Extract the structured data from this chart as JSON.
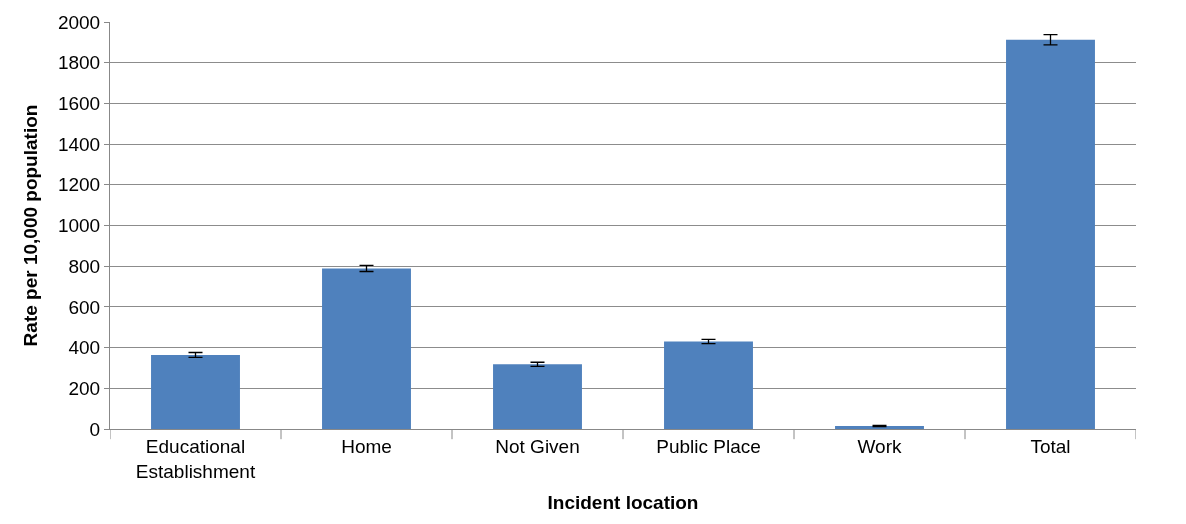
{
  "chart_data": {
    "type": "bar",
    "xlabel": "Incident location",
    "ylabel": "Rate per 10,000 population",
    "categories": [
      "Educational\nEstablishment",
      "Home",
      "Not Given",
      "Public Place",
      "Work",
      "Total"
    ],
    "values": [
      364,
      789,
      318,
      430,
      15,
      1913
    ],
    "errors": [
      12,
      15,
      10,
      10,
      3,
      25
    ],
    "color": "#4f81bd",
    "ylim": [
      0,
      2000
    ],
    "yticks": [
      0,
      200,
      400,
      600,
      800,
      1000,
      1200,
      1400,
      1600,
      1800,
      2000
    ],
    "grid": "y"
  }
}
